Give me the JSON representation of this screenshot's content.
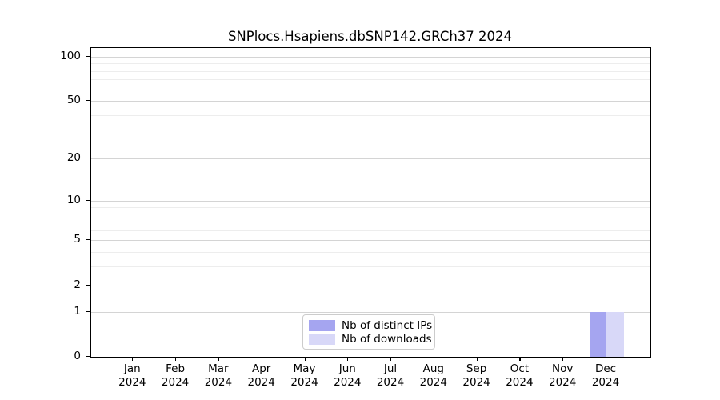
{
  "chart_data": {
    "type": "bar",
    "title": "SNPlocs.Hsapiens.dbSNP142.GRCh37 2024",
    "categories": [
      "Jan",
      "Feb",
      "Mar",
      "Apr",
      "May",
      "Jun",
      "Jul",
      "Aug",
      "Sep",
      "Oct",
      "Nov",
      "Dec"
    ],
    "x_tick_year": "2024",
    "series": [
      {
        "name": "Nb of distinct IPs",
        "color": "#a5a5f0",
        "values": [
          0,
          0,
          0,
          0,
          0,
          0,
          0,
          0,
          0,
          0,
          0,
          1
        ]
      },
      {
        "name": "Nb of downloads",
        "color": "#d8d8f8",
        "values": [
          0,
          0,
          0,
          0,
          0,
          0,
          0,
          0,
          0,
          0,
          0,
          1
        ]
      }
    ],
    "yscale": "log10(1+x)",
    "y_major_ticks": [
      0,
      1,
      2,
      5,
      10,
      20,
      50,
      100
    ],
    "y_minor_ticks": [
      3,
      4,
      6,
      7,
      8,
      9,
      30,
      40,
      60,
      70,
      80,
      90
    ],
    "ylim": [
      0,
      114
    ],
    "xlabel": "",
    "ylabel": "",
    "grid": true,
    "legend_position": "bottom-center"
  }
}
